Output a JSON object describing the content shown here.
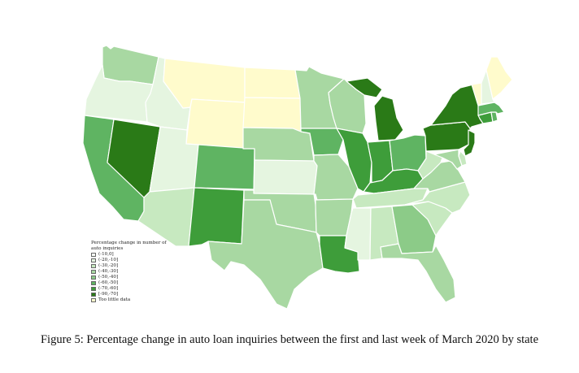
{
  "caption": "Figure 5: Percentage change in auto loan inquiries between the first and last week of March 2020 by state",
  "legend": {
    "title": "Percentage change in number of auto inquiries",
    "items": [
      {
        "label": "(-10,0]",
        "color": "#f7fcf5"
      },
      {
        "label": "(-20,-10]",
        "color": "#e5f5e0"
      },
      {
        "label": "(-30,-20]",
        "color": "#c7e9c0"
      },
      {
        "label": "(-40,-30]",
        "color": "#a8d8a2"
      },
      {
        "label": "(-50,-40]",
        "color": "#8ccb88"
      },
      {
        "label": "(-60,-50]",
        "color": "#5fb462"
      },
      {
        "label": "(-70,-60]",
        "color": "#3e9d3a"
      },
      {
        "label": "[-90,-70]",
        "color": "#2a7a17"
      },
      {
        "label": "Too little data",
        "color": "#fffbcc"
      }
    ]
  },
  "states": [
    {
      "name": "WA",
      "bin": "(-40,-30]"
    },
    {
      "name": "OR",
      "bin": "(-20,-10]"
    },
    {
      "name": "CA",
      "bin": "(-60,-50]"
    },
    {
      "name": "NV",
      "bin": "[-90,-70]"
    },
    {
      "name": "ID",
      "bin": "(-20,-10]"
    },
    {
      "name": "MT",
      "bin": "Too little data"
    },
    {
      "name": "WY",
      "bin": "Too little data"
    },
    {
      "name": "UT",
      "bin": "(-20,-10]"
    },
    {
      "name": "AZ",
      "bin": "(-30,-20]"
    },
    {
      "name": "CO",
      "bin": "(-60,-50]"
    },
    {
      "name": "NM",
      "bin": "(-70,-60]"
    },
    {
      "name": "ND",
      "bin": "Too little data"
    },
    {
      "name": "SD",
      "bin": "Too little data"
    },
    {
      "name": "NE",
      "bin": "(-40,-30]"
    },
    {
      "name": "KS",
      "bin": "(-20,-10]"
    },
    {
      "name": "OK",
      "bin": "(-40,-30]"
    },
    {
      "name": "TX",
      "bin": "(-40,-30]"
    },
    {
      "name": "MN",
      "bin": "(-40,-30]"
    },
    {
      "name": "IA",
      "bin": "(-60,-50]"
    },
    {
      "name": "MO",
      "bin": "(-40,-30]"
    },
    {
      "name": "AR",
      "bin": "(-40,-30]"
    },
    {
      "name": "LA",
      "bin": "(-70,-60]"
    },
    {
      "name": "WI",
      "bin": "(-40,-30]"
    },
    {
      "name": "IL",
      "bin": "(-70,-60]"
    },
    {
      "name": "MI",
      "bin": "[-90,-70]"
    },
    {
      "name": "IN",
      "bin": "(-70,-60]"
    },
    {
      "name": "OH",
      "bin": "(-60,-50]"
    },
    {
      "name": "KY",
      "bin": "(-70,-60]"
    },
    {
      "name": "TN",
      "bin": "(-30,-20]"
    },
    {
      "name": "MS",
      "bin": "(-20,-10]"
    },
    {
      "name": "AL",
      "bin": "(-30,-20]"
    },
    {
      "name": "GA",
      "bin": "(-50,-40]"
    },
    {
      "name": "FL",
      "bin": "(-40,-30]"
    },
    {
      "name": "SC",
      "bin": "(-30,-20]"
    },
    {
      "name": "NC",
      "bin": "(-30,-20]"
    },
    {
      "name": "VA",
      "bin": "(-40,-30]"
    },
    {
      "name": "WV",
      "bin": "(-30,-20]"
    },
    {
      "name": "PA",
      "bin": "[-90,-70]"
    },
    {
      "name": "NY",
      "bin": "[-90,-70]"
    },
    {
      "name": "NJ",
      "bin": "[-90,-70]"
    },
    {
      "name": "DE",
      "bin": "(-30,-20]"
    },
    {
      "name": "MD",
      "bin": "(-40,-30]"
    },
    {
      "name": "CT",
      "bin": "(-70,-60]"
    },
    {
      "name": "RI",
      "bin": "(-60,-50]"
    },
    {
      "name": "MA",
      "bin": "(-60,-50]"
    },
    {
      "name": "VT",
      "bin": "Too little data"
    },
    {
      "name": "NH",
      "bin": "(-20,-10]"
    },
    {
      "name": "ME",
      "bin": "Too little data"
    }
  ]
}
